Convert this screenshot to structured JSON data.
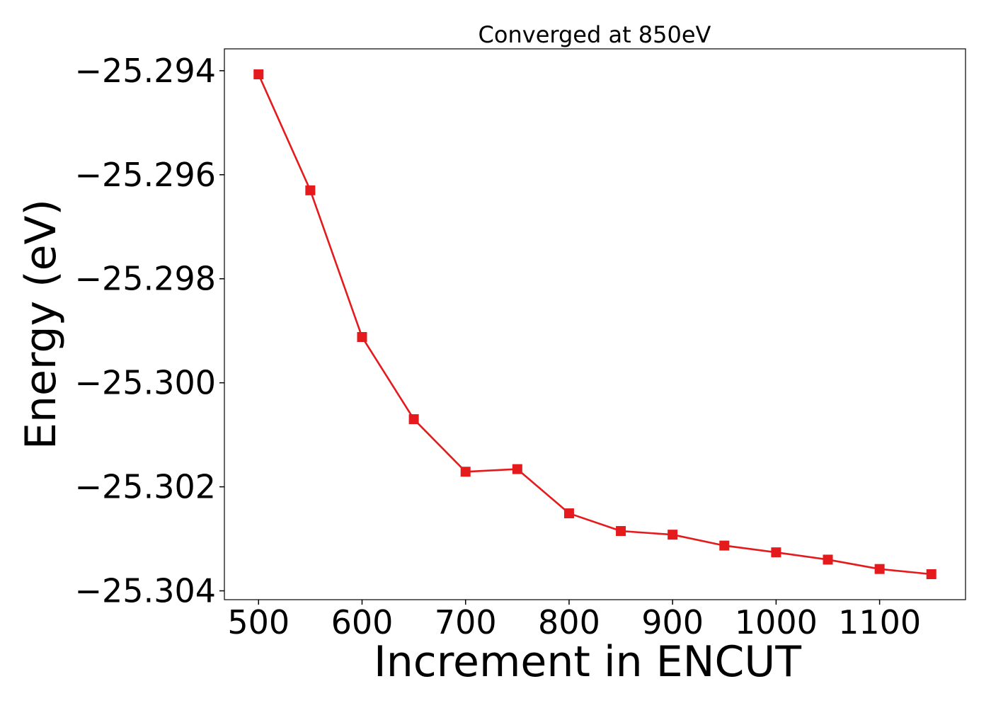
{
  "chart_data": {
    "type": "line",
    "title": "Converged at 850eV",
    "xlabel": "Increment in ENCUT",
    "ylabel": "Energy (eV)",
    "xlim": [
      467,
      1183
    ],
    "ylim": [
      -25.30417,
      -25.29358
    ],
    "xticks": [
      500,
      600,
      700,
      800,
      900,
      1000,
      1100
    ],
    "xtick_labels": [
      "500",
      "600",
      "700",
      "800",
      "900",
      "1000",
      "1100"
    ],
    "yticks": [
      -25.294,
      -25.296,
      -25.298,
      -25.3,
      -25.302,
      -25.304
    ],
    "ytick_labels": [
      "−25.294",
      "−25.296",
      "−25.298",
      "−25.300",
      "−25.302",
      "−25.304"
    ],
    "grid": false,
    "series": [
      {
        "color": "#e41a1c",
        "marker": "square",
        "x": [
          500,
          550,
          600,
          650,
          700,
          750,
          800,
          850,
          900,
          950,
          1000,
          1050,
          1100,
          1150
        ],
        "y": [
          -25.29407,
          -25.2963,
          -25.29912,
          -25.3007,
          -25.30171,
          -25.30166,
          -25.30251,
          -25.30285,
          -25.30292,
          -25.30313,
          -25.30326,
          -25.3034,
          -25.30358,
          -25.30368
        ]
      }
    ]
  }
}
